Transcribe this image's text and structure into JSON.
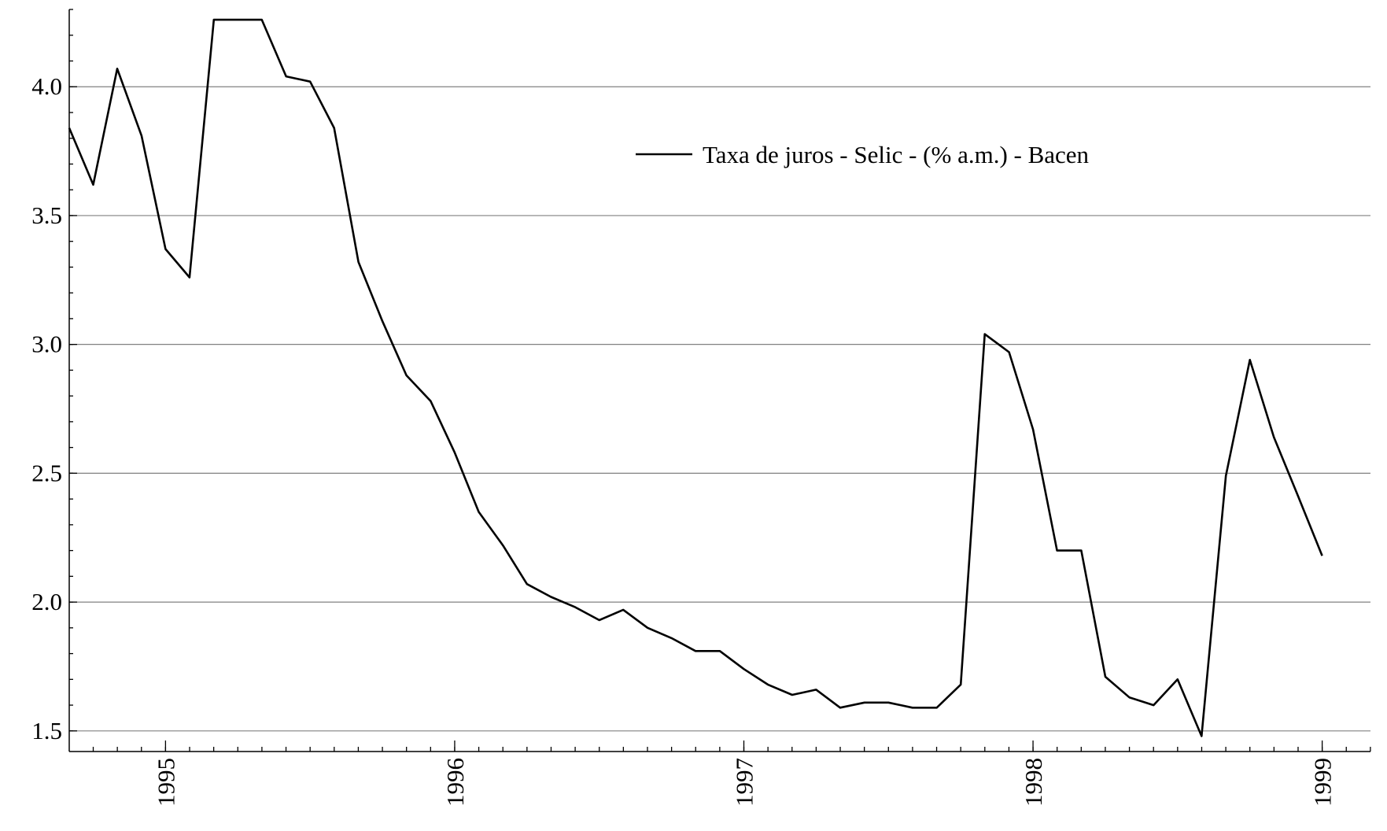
{
  "chart_data": {
    "type": "line",
    "title": "",
    "xlabel": "",
    "ylabel": "",
    "xlim": [
      1994.667,
      1999.167
    ],
    "ylim": [
      1.42,
      4.3
    ],
    "grid": true,
    "legend_position": "top-center",
    "line_color": "#000000",
    "grid_color": "#808080",
    "y_ticks": [
      1.5,
      2.0,
      2.5,
      3.0,
      3.5,
      4.0
    ],
    "y_tick_labels": [
      "1.5",
      "2.0",
      "2.5",
      "3.0",
      "3.5",
      "4.0"
    ],
    "x_ticks": [
      1995,
      1996,
      1997,
      1998,
      1999
    ],
    "x_tick_labels": [
      "1995",
      "1996",
      "1997",
      "1998",
      "1999"
    ],
    "series": [
      {
        "name": "Taxa de juros - Selic - (% a.m.) - Bacen",
        "x": [
          1994.667,
          1994.75,
          1994.833,
          1994.917,
          1995.0,
          1995.083,
          1995.167,
          1995.25,
          1995.333,
          1995.417,
          1995.5,
          1995.583,
          1995.667,
          1995.75,
          1995.833,
          1995.917,
          1996.0,
          1996.083,
          1996.167,
          1996.25,
          1996.333,
          1996.417,
          1996.5,
          1996.583,
          1996.667,
          1996.75,
          1996.833,
          1996.917,
          1997.0,
          1997.083,
          1997.167,
          1997.25,
          1997.333,
          1997.417,
          1997.5,
          1997.583,
          1997.667,
          1997.75,
          1997.833,
          1997.917,
          1998.0,
          1998.083,
          1998.167,
          1998.25,
          1998.333,
          1998.417,
          1998.5,
          1998.583,
          1998.667,
          1998.75,
          1998.833,
          1998.917,
          1999.0
        ],
        "y": [
          3.84,
          3.62,
          4.07,
          3.81,
          3.37,
          3.26,
          4.26,
          4.26,
          4.26,
          4.04,
          4.02,
          3.84,
          3.32,
          3.09,
          2.88,
          2.78,
          2.58,
          2.35,
          2.22,
          2.07,
          2.02,
          1.98,
          1.93,
          1.97,
          1.9,
          1.86,
          1.81,
          1.81,
          1.74,
          1.68,
          1.64,
          1.66,
          1.59,
          1.61,
          1.61,
          1.59,
          1.59,
          1.68,
          3.04,
          2.97,
          2.67,
          2.2,
          2.2,
          1.71,
          1.63,
          1.6,
          1.7,
          1.48,
          2.49,
          2.94,
          2.64,
          2.41,
          2.18
        ]
      }
    ]
  }
}
